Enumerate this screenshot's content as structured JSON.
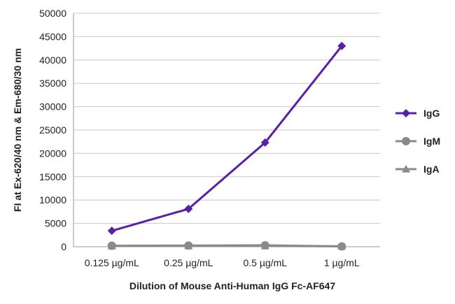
{
  "chart_data": {
    "type": "line",
    "title": "",
    "xlabel": "Dilution of Mouse Anti-Human IgG Fc-AF647",
    "ylabel": "FI at Ex-620/40 nm & Em-680/30 nm",
    "categories": [
      "0.125 µg/mL",
      "0.25 µg/mL",
      "0.5 µg/mL",
      "1 µg/mL"
    ],
    "ylim": [
      0,
      50000
    ],
    "yticks": [
      "0",
      "5000",
      "10000",
      "15000",
      "20000",
      "25000",
      "30000",
      "35000",
      "40000",
      "45000",
      "50000"
    ],
    "ytick_values": [
      0,
      5000,
      10000,
      15000,
      20000,
      25000,
      30000,
      35000,
      40000,
      45000,
      50000
    ],
    "grid": "horizontal",
    "legend_position": "right",
    "series": [
      {
        "name": "IgG",
        "values": [
          3400,
          8100,
          22300,
          43000
        ],
        "color": "#5a1fa8",
        "marker": "diamond"
      },
      {
        "name": "IgM",
        "values": [
          200,
          250,
          300,
          50
        ],
        "color": "#8a8a8a",
        "marker": "circle"
      },
      {
        "name": "IgA",
        "values": [
          150,
          150,
          150,
          100
        ],
        "color": "#8a8a8a",
        "marker": "triangle"
      }
    ]
  }
}
